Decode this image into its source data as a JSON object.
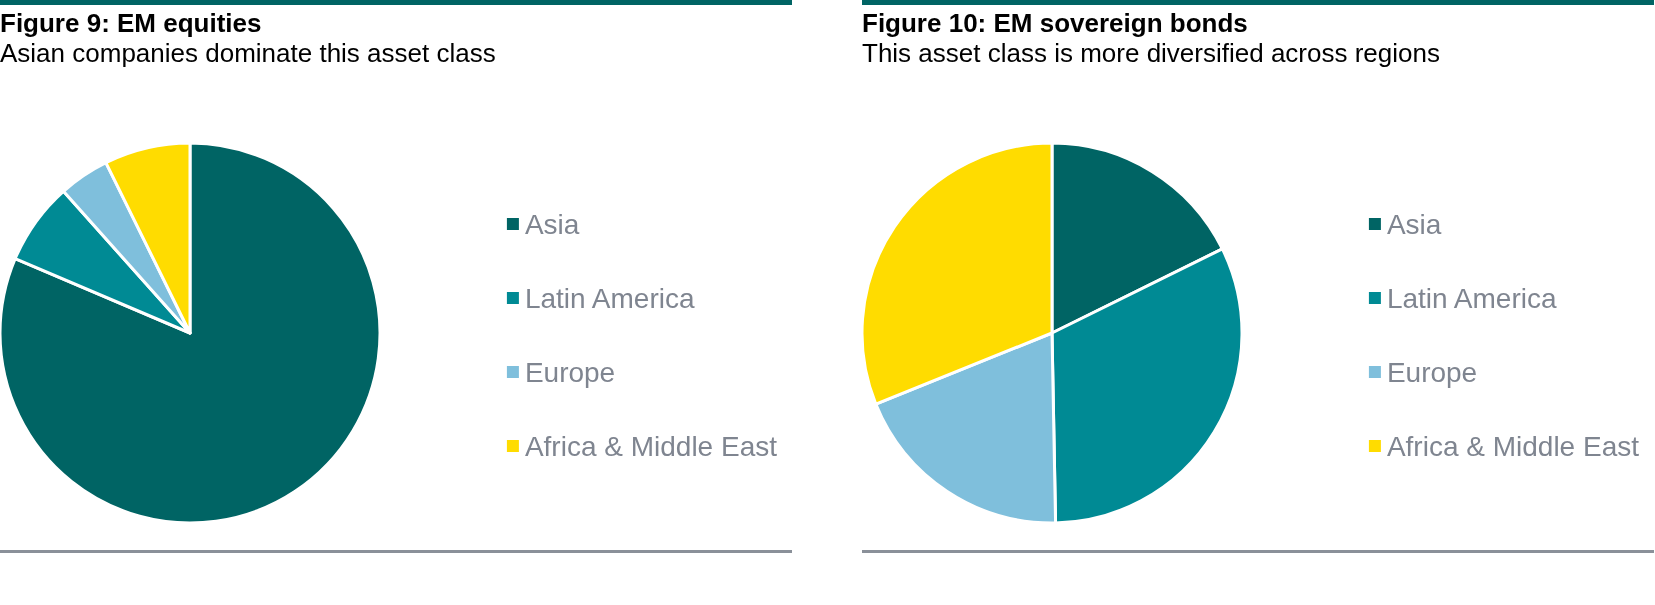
{
  "chart_data": [
    {
      "type": "pie",
      "title": "Figure 9: EM equities",
      "subtitle": "Asian companies dominate this asset class",
      "categories": [
        "Asia",
        "Latin America",
        "Europe",
        "Africa & Middle East"
      ],
      "values": [
        81.4,
        7,
        4.3,
        7.3
      ],
      "colors": [
        "#006464",
        "#008a94",
        "#7fbfdc",
        "#ffdc00"
      ],
      "legend": "right"
    },
    {
      "type": "pie",
      "title": "Figure 10: EM sovereign bonds",
      "subtitle": "This asset class is more diversified across regions",
      "categories": [
        "Asia",
        "Latin America",
        "Europe",
        "Africa & Middle East"
      ],
      "values": [
        17.7,
        32,
        19.2,
        31.1
      ],
      "colors": [
        "#006464",
        "#008a94",
        "#7fbfdc",
        "#ffdc00"
      ],
      "legend": "right"
    }
  ]
}
